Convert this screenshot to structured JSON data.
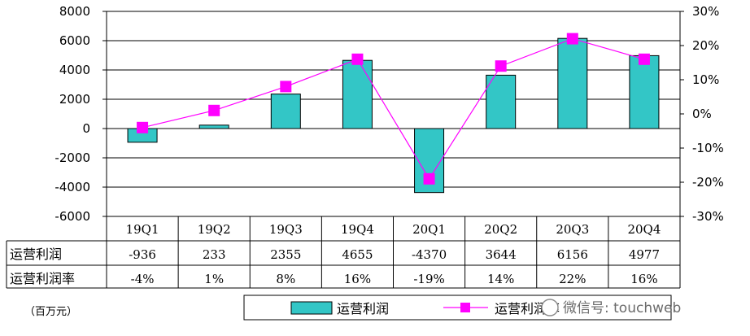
{
  "chart_data": {
    "type": "bar",
    "categories": [
      "19Q1",
      "19Q2",
      "19Q3",
      "19Q4",
      "20Q1",
      "20Q2",
      "20Q3",
      "20Q4"
    ],
    "series": [
      {
        "name": "运营利润",
        "type": "bar",
        "axis": "left",
        "values": [
          -936,
          233,
          2355,
          4655,
          -4370,
          3644,
          6156,
          4977
        ],
        "color": "#33c6c6"
      },
      {
        "name": "运营利润率",
        "type": "line",
        "axis": "right",
        "values": [
          -4,
          1,
          8,
          16,
          -19,
          14,
          22,
          16
        ],
        "color": "#ff00ff"
      }
    ],
    "table_rows": [
      {
        "label": "运营利润",
        "cells": [
          "-936",
          "233",
          "2355",
          "4655",
          "-4370",
          "3644",
          "6156",
          "4977"
        ]
      },
      {
        "label": "运营利润率",
        "cells": [
          "-4%",
          "1%",
          "8%",
          "16%",
          "-19%",
          "14%",
          "22%",
          "16%"
        ]
      }
    ],
    "y_left": {
      "range": [
        -6000,
        8000
      ],
      "ticks": [
        "8000",
        "6000",
        "4000",
        "2000",
        "0",
        "-2000",
        "-4000",
        "-6000"
      ]
    },
    "y_right": {
      "range": [
        -30,
        30
      ],
      "ticks": [
        "30%",
        "20%",
        "10%",
        "0%",
        "-10%",
        "-20%",
        "-30%"
      ]
    },
    "unit_label": "（百万元）",
    "legend": {
      "position": "bottom",
      "items": [
        "运营利润",
        "运营利润率"
      ]
    },
    "grid": true
  },
  "watermark": "微信号: touchweb"
}
